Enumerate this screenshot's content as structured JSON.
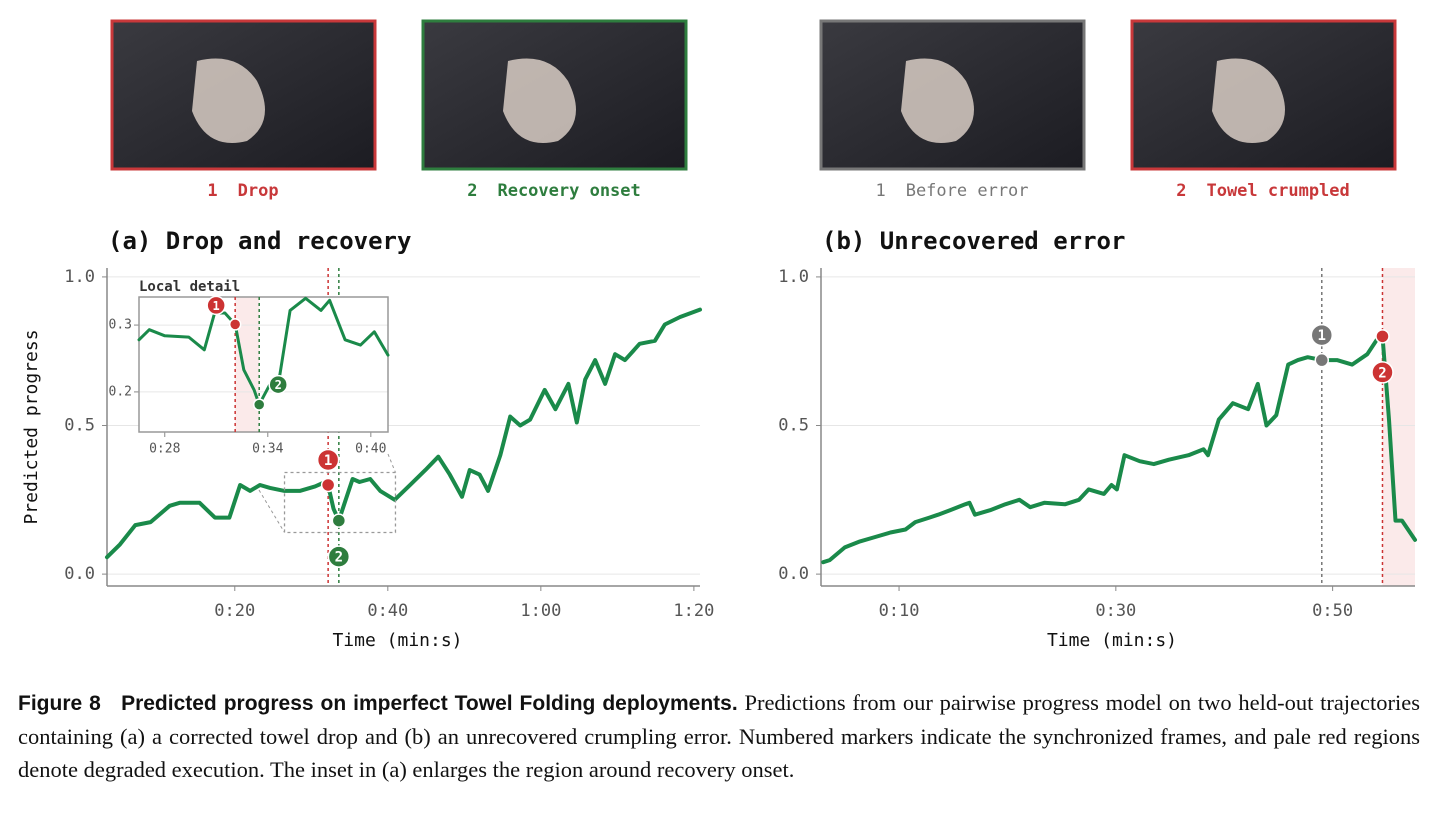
{
  "frames": [
    [
      {
        "number": "1",
        "label": "Drop",
        "color": "#c8383a"
      },
      {
        "number": "2",
        "label": "Recovery onset",
        "color": "#2e7d3e"
      }
    ],
    [
      {
        "number": "1",
        "label": "Before error",
        "color": "#777777"
      },
      {
        "number": "2",
        "label": "Towel crumpled",
        "color": "#c8383a"
      }
    ]
  ],
  "chart_data": [
    {
      "type": "line",
      "title": "(a) Drop and recovery",
      "xlabel": "Time (min:s)",
      "ylabel": "Predicted progress",
      "color": "#1a8a4a",
      "grid": true,
      "xlim": [
        3.3,
        80.8
      ],
      "ylim": [
        -0.04,
        1.03
      ],
      "xticks": [
        {
          "value": 20,
          "label": "0:20"
        },
        {
          "value": 40,
          "label": "0:40"
        },
        {
          "value": 60,
          "label": "1:00"
        },
        {
          "value": 80,
          "label": "1:20"
        }
      ],
      "yticks": [
        {
          "value": 0,
          "label": "0.0"
        },
        0.5,
        {
          "value": 1,
          "label": "1.0"
        }
      ],
      "x": [
        3.3,
        5,
        7,
        9,
        11.5,
        12.8,
        15.4,
        17.4,
        19.3,
        20.7,
        22,
        23.3,
        24.6,
        26.5,
        28.5,
        30.5,
        31.8,
        32.2,
        32.9,
        33.6,
        34.5,
        35.4,
        36.3,
        37.7,
        39,
        40.9,
        42.9,
        44.9,
        46.6,
        48.1,
        49.7,
        50.7,
        52,
        53.1,
        54.7,
        56,
        57.3,
        58.6,
        60.5,
        61.9,
        63.6,
        64.7,
        65.8,
        67.1,
        68.4,
        69.7,
        71,
        72.9,
        74.9,
        76.2,
        78.2,
        80.8
      ],
      "values": [
        0.057,
        0.1,
        0.165,
        0.175,
        0.23,
        0.24,
        0.24,
        0.19,
        0.19,
        0.3,
        0.28,
        0.3,
        0.29,
        0.28,
        0.28,
        0.295,
        0.31,
        0.3,
        0.22,
        0.18,
        0.25,
        0.32,
        0.31,
        0.32,
        0.28,
        0.25,
        0.3,
        0.35,
        0.395,
        0.335,
        0.26,
        0.35,
        0.335,
        0.28,
        0.4,
        0.53,
        0.5,
        0.52,
        0.62,
        0.555,
        0.64,
        0.51,
        0.655,
        0.72,
        0.64,
        0.74,
        0.72,
        0.775,
        0.785,
        0.84,
        0.865,
        0.89
      ],
      "markers": [
        {
          "label": "1",
          "x": 32.2,
          "y": 0.3,
          "color": "#cc3333",
          "badge": "above"
        },
        {
          "label": "2",
          "x": 33.6,
          "y": 0.18,
          "color": "#2e7d3e",
          "badge": "below"
        }
      ],
      "inset": {
        "type": "line",
        "title": "Local detail",
        "color": "#1a8a4a",
        "grid": true,
        "xlim": [
          26.5,
          41.0
        ],
        "ylim": [
          0.14,
          0.342
        ],
        "xticks": [
          {
            "value": 28,
            "label": "0:28"
          },
          {
            "value": 34,
            "label": "0:34"
          },
          {
            "value": 40,
            "label": "0:40"
          }
        ],
        "yticks": [
          0.2,
          0.3
        ],
        "x": [
          26.5,
          27.1,
          28,
          29.4,
          30.3,
          30.9,
          31.5,
          32.1,
          32.6,
          33.2,
          33.5,
          34.1,
          34.7,
          35.3,
          36.2,
          37.1,
          37.6,
          38.5,
          39.4,
          40.2,
          41.0
        ],
        "values": [
          0.278,
          0.293,
          0.284,
          0.282,
          0.263,
          0.318,
          0.318,
          0.301,
          0.233,
          0.203,
          0.181,
          0.21,
          0.225,
          0.322,
          0.34,
          0.322,
          0.337,
          0.278,
          0.27,
          0.29,
          0.255
        ],
        "degraded_region": [
          32.1,
          33.5
        ],
        "markers": [
          {
            "label": "1",
            "x": 32.1,
            "y": 0.301,
            "color": "#cc3333",
            "badge": "upper-left"
          },
          {
            "label": "2",
            "x": 33.5,
            "y": 0.181,
            "color": "#2e7d3e",
            "badge": "upper-right"
          }
        ]
      }
    },
    {
      "type": "line",
      "title": "(b) Unrecovered error",
      "xlabel": "Time (min:s)",
      "color": "#1a8a4a",
      "grid": true,
      "xlim": [
        2.8,
        57.6
      ],
      "ylim": [
        -0.04,
        1.03
      ],
      "xticks": [
        {
          "value": 10,
          "label": "0:10"
        },
        {
          "value": 30,
          "label": "0:30"
        },
        {
          "value": 50,
          "label": "0:50"
        }
      ],
      "yticks": [
        {
          "value": 0,
          "label": "0.0"
        },
        0.5,
        {
          "value": 1,
          "label": "1.0"
        }
      ],
      "x": [
        3,
        3.6,
        5,
        6.4,
        7.8,
        9.2,
        10.6,
        11.5,
        12.8,
        13.6,
        14.7,
        16.1,
        16.5,
        17,
        18.4,
        19.8,
        21.1,
        22.1,
        23.4,
        25.3,
        26.6,
        27.5,
        28.9,
        29.6,
        30.1,
        30.8,
        32.2,
        33.5,
        34.9,
        36.7,
        38.1,
        38.5,
        39.5,
        40.8,
        42.2,
        43.1,
        43.9,
        44.8,
        45.9,
        46.8,
        47.7,
        49,
        50.4,
        51.8,
        53.2,
        54.1,
        54.6,
        55.2,
        55.8,
        56.4,
        57.6
      ],
      "values": [
        0.04,
        0.047,
        0.09,
        0.11,
        0.125,
        0.14,
        0.15,
        0.175,
        0.19,
        0.2,
        0.215,
        0.235,
        0.24,
        0.2,
        0.215,
        0.235,
        0.25,
        0.225,
        0.24,
        0.235,
        0.25,
        0.285,
        0.27,
        0.3,
        0.285,
        0.4,
        0.38,
        0.37,
        0.385,
        0.4,
        0.42,
        0.4,
        0.52,
        0.575,
        0.555,
        0.64,
        0.5,
        0.535,
        0.705,
        0.72,
        0.73,
        0.72,
        0.72,
        0.705,
        0.74,
        0.79,
        0.8,
        0.52,
        0.18,
        0.18,
        0.115
      ],
      "degraded_region": [
        54.6,
        57.6
      ],
      "markers": [
        {
          "label": "1",
          "x": 49,
          "y": 0.72,
          "color": "#777777",
          "badge": "above"
        },
        {
          "label": "2",
          "x": 54.6,
          "y": 0.8,
          "color": "#cc3333",
          "badge": "below"
        }
      ]
    }
  ],
  "caption": {
    "label": "Figure 8",
    "title": "Predicted progress on imperfect Towel Folding deployments.",
    "text": "Predictions from our pairwise progress model on two held-out trajectories containing (a) a corrected towel drop and (b) an unrecovered crumpling error. Numbered markers indicate the synchronized frames, and pale red regions denote degraded execution. The inset in (a) enlarges the region around recovery onset."
  }
}
